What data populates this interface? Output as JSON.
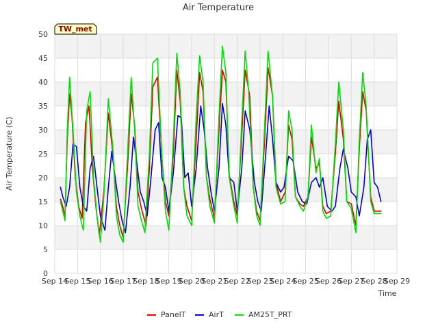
{
  "chart_data": {
    "type": "line",
    "title": "Air Temperature",
    "xlabel": "Time",
    "ylabel": "Air Temperature (C)",
    "badge": "TW_met",
    "ylim": [
      0,
      50
    ],
    "yticks": [
      0,
      5,
      10,
      15,
      20,
      25,
      30,
      35,
      40,
      45,
      50
    ],
    "xlim": [
      0,
      15
    ],
    "xticks": [
      "Sep 14",
      "Sep 15",
      "Sep 16",
      "Sep 17",
      "Sep 18",
      "Sep 19",
      "Sep 20",
      "Sep 21",
      "Sep 22",
      "Sep 23",
      "Sep 24",
      "Sep 25",
      "Sep 26",
      "Sep 27",
      "Sep 28",
      "Sep 29"
    ],
    "grid": true,
    "legend_position": "bottom",
    "x_units": "days since Sep 14",
    "series": [
      {
        "name": "PanelT",
        "color": "#dd0000",
        "x": [
          0.25,
          0.35,
          0.45,
          0.55,
          0.65,
          0.75,
          0.9,
          1.05,
          1.2,
          1.35,
          1.5,
          1.65,
          1.8,
          1.95,
          2.15,
          2.35,
          2.55,
          2.7,
          2.85,
          3.0,
          3.2,
          3.35,
          3.5,
          3.65,
          3.8,
          4.0,
          4.15,
          4.3,
          4.5,
          4.7,
          4.85,
          5.0,
          5.2,
          5.35,
          5.5,
          5.65,
          5.8,
          6.0,
          6.2,
          6.35,
          6.5,
          6.65,
          6.8,
          7.0,
          7.2,
          7.35,
          7.5,
          7.65,
          7.85,
          8.0,
          8.2,
          8.35,
          8.55,
          8.7,
          8.85,
          9.0,
          9.2,
          9.35,
          9.55,
          9.7,
          9.9,
          10.1,
          10.25,
          10.4,
          10.55,
          10.75,
          10.9,
          11.1,
          11.25,
          11.45,
          11.6,
          11.75,
          11.9,
          12.1,
          12.3,
          12.45,
          12.65,
          12.8,
          13.0,
          13.2,
          13.35,
          13.5,
          13.65,
          13.85,
          14.0,
          14.15,
          14.3
        ],
        "values": [
          15.5,
          14.0,
          12.0,
          28.0,
          37.5,
          33.0,
          20.0,
          14.0,
          11.5,
          31.5,
          35.0,
          22.0,
          14.0,
          8.0,
          17.0,
          33.5,
          25.0,
          14.0,
          10.0,
          7.5,
          23.0,
          37.5,
          31.0,
          17.0,
          13.5,
          10.0,
          22.0,
          39.0,
          41.0,
          24.0,
          15.0,
          12.0,
          25.0,
          42.5,
          36.0,
          18.0,
          14.0,
          11.0,
          28.0,
          42.0,
          38.0,
          20.0,
          15.5,
          11.5,
          30.0,
          42.5,
          40.0,
          20.5,
          15.0,
          12.0,
          29.0,
          42.5,
          37.0,
          18.0,
          13.0,
          11.0,
          28.0,
          43.0,
          37.0,
          19.0,
          15.0,
          17.0,
          31.0,
          28.0,
          16.0,
          14.5,
          14.0,
          16.0,
          28.5,
          22.0,
          23.0,
          14.0,
          12.5,
          13.0,
          25.0,
          36.0,
          28.0,
          15.0,
          14.5,
          10.0,
          26.0,
          38.0,
          34.0,
          16.0,
          13.0,
          13.0,
          13.0
        ]
      },
      {
        "name": "AirT",
        "color": "#0000cc",
        "x": [
          0.25,
          0.35,
          0.5,
          0.65,
          0.8,
          0.95,
          1.1,
          1.25,
          1.4,
          1.55,
          1.7,
          1.85,
          2.0,
          2.2,
          2.35,
          2.5,
          2.65,
          2.8,
          2.95,
          3.1,
          3.3,
          3.45,
          3.6,
          3.75,
          3.9,
          4.05,
          4.2,
          4.4,
          4.55,
          4.7,
          4.85,
          5.0,
          5.2,
          5.4,
          5.55,
          5.7,
          5.85,
          6.0,
          6.2,
          6.4,
          6.55,
          6.7,
          6.85,
          7.0,
          7.2,
          7.35,
          7.5,
          7.65,
          7.85,
          8.0,
          8.2,
          8.35,
          8.55,
          8.75,
          8.9,
          9.05,
          9.25,
          9.4,
          9.55,
          9.7,
          9.9,
          10.05,
          10.25,
          10.45,
          10.65,
          10.85,
          11.05,
          11.25,
          11.45,
          11.6,
          11.75,
          11.95,
          12.15,
          12.3,
          12.5,
          12.65,
          12.85,
          13.0,
          13.2,
          13.35,
          13.55,
          13.7,
          13.85,
          14.0,
          14.15,
          14.3
        ],
        "values": [
          18.0,
          16.0,
          14.0,
          18.0,
          27.0,
          26.5,
          18.0,
          14.0,
          13.0,
          22.0,
          24.5,
          18.0,
          12.0,
          9.0,
          18.0,
          25.5,
          20.0,
          15.0,
          11.0,
          8.5,
          18.0,
          28.5,
          23.0,
          17.0,
          15.0,
          12.0,
          19.0,
          30.0,
          31.5,
          20.0,
          18.0,
          13.0,
          21.0,
          33.0,
          32.5,
          20.0,
          21.0,
          14.0,
          22.0,
          35.0,
          30.0,
          22.0,
          17.0,
          13.0,
          22.0,
          35.5,
          31.0,
          20.0,
          19.0,
          13.0,
          22.0,
          34.0,
          30.0,
          19.0,
          15.0,
          13.0,
          25.0,
          35.0,
          28.0,
          19.0,
          17.0,
          18.0,
          24.5,
          23.5,
          17.0,
          15.0,
          14.5,
          19.0,
          20.0,
          18.0,
          20.0,
          14.0,
          13.0,
          14.0,
          22.0,
          26.0,
          22.0,
          17.0,
          16.0,
          12.0,
          18.0,
          28.0,
          30.0,
          19.0,
          18.0,
          15.0
        ]
      },
      {
        "name": "AM25T_PRT",
        "color": "#00dd00",
        "x": [
          0.25,
          0.35,
          0.45,
          0.55,
          0.65,
          0.8,
          0.95,
          1.1,
          1.25,
          1.4,
          1.55,
          1.7,
          1.85,
          2.0,
          2.15,
          2.35,
          2.55,
          2.7,
          2.85,
          3.0,
          3.2,
          3.35,
          3.5,
          3.65,
          3.8,
          3.95,
          4.15,
          4.3,
          4.5,
          4.7,
          4.85,
          5.0,
          5.2,
          5.35,
          5.5,
          5.65,
          5.8,
          6.0,
          6.2,
          6.35,
          6.5,
          6.65,
          6.8,
          7.0,
          7.2,
          7.35,
          7.5,
          7.65,
          7.85,
          8.0,
          8.2,
          8.35,
          8.5,
          8.7,
          8.85,
          9.0,
          9.2,
          9.35,
          9.55,
          9.7,
          9.9,
          10.1,
          10.25,
          10.4,
          10.55,
          10.75,
          10.9,
          11.1,
          11.25,
          11.45,
          11.6,
          11.75,
          11.9,
          12.1,
          12.3,
          12.45,
          12.65,
          12.8,
          13.0,
          13.2,
          13.35,
          13.5,
          13.65,
          13.85,
          14.0,
          14.15,
          14.3
        ],
        "values": [
          15.0,
          13.0,
          11.0,
          30.0,
          41.0,
          30.0,
          17.0,
          12.0,
          9.0,
          34.0,
          38.0,
          20.0,
          12.0,
          6.5,
          16.0,
          36.5,
          26.0,
          12.0,
          8.0,
          6.5,
          26.0,
          41.0,
          30.0,
          14.0,
          11.0,
          8.5,
          25.0,
          44.0,
          45.0,
          24.0,
          13.0,
          9.0,
          28.0,
          46.0,
          38.0,
          18.0,
          12.0,
          10.0,
          33.0,
          45.5,
          40.0,
          20.0,
          14.0,
          10.5,
          33.0,
          47.5,
          42.0,
          20.0,
          14.0,
          10.5,
          32.0,
          46.5,
          38.0,
          18.0,
          12.0,
          10.0,
          31.0,
          46.5,
          37.0,
          18.0,
          14.5,
          15.0,
          34.0,
          30.0,
          16.0,
          14.0,
          13.0,
          16.0,
          31.0,
          21.0,
          24.0,
          13.0,
          11.5,
          12.0,
          27.0,
          40.0,
          30.0,
          15.0,
          13.5,
          8.5,
          28.0,
          42.0,
          35.0,
          15.0,
          12.5,
          12.5,
          12.5
        ]
      }
    ]
  }
}
